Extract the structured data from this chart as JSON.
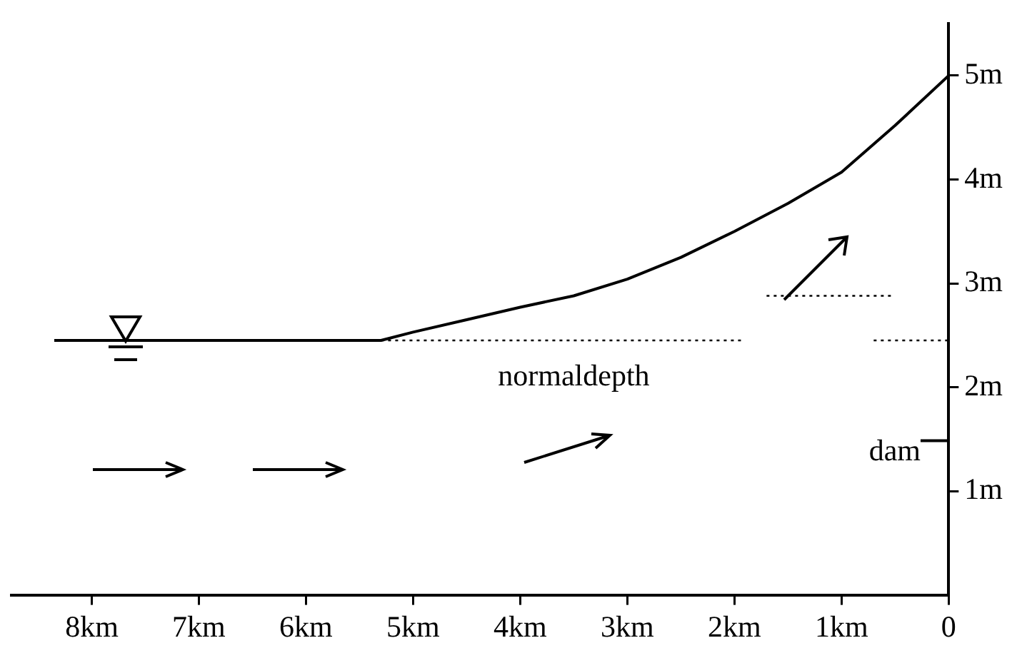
{
  "chart_data": {
    "type": "line",
    "xlim": [
      8.75,
      0
    ],
    "ylim": [
      0,
      5.5
    ],
    "xticks": [
      {
        "value": 8,
        "label": "8km"
      },
      {
        "value": 7,
        "label": "7km"
      },
      {
        "value": 6,
        "label": "6km"
      },
      {
        "value": 5,
        "label": "5km"
      },
      {
        "value": 4,
        "label": "4km"
      },
      {
        "value": 3,
        "label": "3km"
      },
      {
        "value": 2,
        "label": "2km"
      },
      {
        "value": 1,
        "label": "1km"
      },
      0
    ],
    "yticks": [
      {
        "value": 1,
        "label": "1m"
      },
      {
        "value": 2,
        "label": "2m"
      },
      {
        "value": 3,
        "label": "3m"
      },
      {
        "value": 4,
        "label": "4m"
      },
      {
        "value": 5,
        "label": "5m"
      }
    ],
    "grid": false,
    "legend": false,
    "marker": "none",
    "series": [
      {
        "color": "#000000",
        "line_style": "solid",
        "x": [
          8.35,
          5.3,
          5,
          4.5,
          4,
          3.5,
          3,
          2.5,
          2,
          1.5,
          1,
          0.5,
          0
        ],
        "values": [
          2.45,
          2.45,
          2.53,
          2.65,
          2.77,
          2.88,
          3.04,
          3.25,
          3.5,
          3.77,
          4.07,
          4.52,
          5.0
        ]
      },
      {
        "color": "#000000",
        "line_style": "dotted",
        "x": [
          5.3,
          1.9,
          1.3,
          0.7,
          0
        ],
        "values": [
          2.45,
          2.45,
          null,
          2.45,
          2.45
        ]
      },
      {
        "color": "#000000",
        "line_style": "dotted",
        "x": [
          1.7,
          0.5
        ],
        "values": [
          2.88,
          2.88
        ]
      }
    ],
    "annotations": [
      "normaldepth",
      "dam"
    ]
  }
}
